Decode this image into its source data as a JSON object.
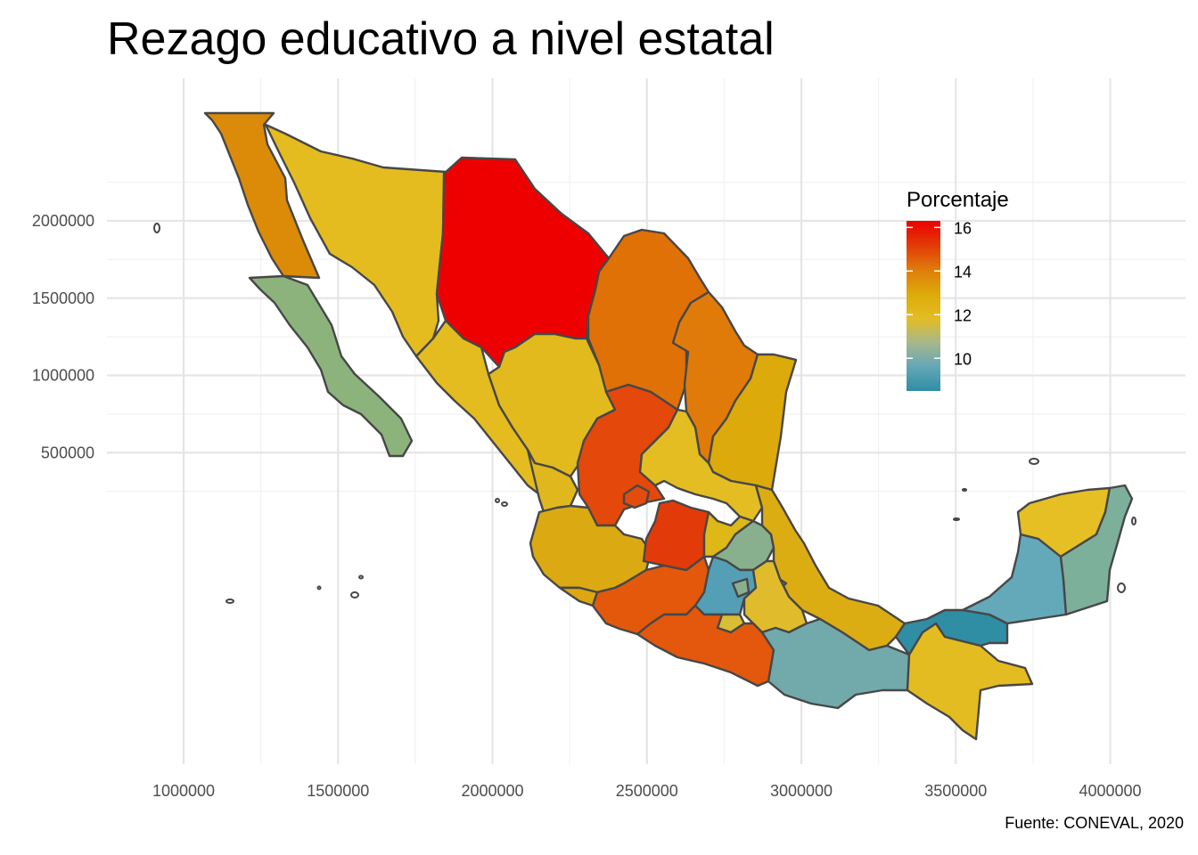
{
  "title": "Rezago educativo a nivel estatal",
  "caption": "Fuente: CONEVAL, 2020",
  "legend": {
    "title": "Porcentaje",
    "breaks": [
      16,
      14,
      12,
      10
    ],
    "range": [
      8.5,
      16.3
    ],
    "palette": [
      "#2f8da4",
      "#64a7b7",
      "#a7b88a",
      "#e4bd22",
      "#dcaa0a",
      "#e07b09",
      "#e23a08",
      "#ee0000"
    ]
  },
  "axes": {
    "x_ticks": [
      "1000000",
      "1500000",
      "2000000",
      "2500000",
      "3000000",
      "3500000",
      "4000000"
    ],
    "y_ticks": [
      "2000000",
      "1500000",
      "1000000",
      "500000"
    ],
    "grid": true,
    "x_range": [
      850000,
      4250000
    ],
    "y_range": [
      220000,
      2470000
    ]
  },
  "states": [
    {
      "name": "Baja California",
      "value": 14.5,
      "color": "#db8b08"
    },
    {
      "name": "Baja California Sur",
      "value": 11.2,
      "color": "#8db37d"
    },
    {
      "name": "Sonora",
      "value": 13.0,
      "color": "#e4bc1f"
    },
    {
      "name": "Chihuahua",
      "value": 16.3,
      "color": "#ee0000"
    },
    {
      "name": "Coahuila",
      "value": 14.8,
      "color": "#df7106"
    },
    {
      "name": "Nuevo León",
      "value": 14.6,
      "color": "#e07b09"
    },
    {
      "name": "Tamaulipas",
      "value": 13.7,
      "color": "#dcaa0a"
    },
    {
      "name": "Sinaloa",
      "value": 13.0,
      "color": "#e4bc1f"
    },
    {
      "name": "Durango",
      "value": 13.1,
      "color": "#e2ba1e"
    },
    {
      "name": "Zacatecas",
      "value": 15.5,
      "color": "#e4480a"
    },
    {
      "name": "Aguascalientes",
      "value": 15.4,
      "color": "#e34c0c"
    },
    {
      "name": "San Luis Potosí",
      "value": 12.9,
      "color": "#e4bd22"
    },
    {
      "name": "Nayarit",
      "value": 13.2,
      "color": "#e0b81e"
    },
    {
      "name": "Jalisco",
      "value": 13.6,
      "color": "#dba912"
    },
    {
      "name": "Colima",
      "value": 13.6,
      "color": "#dca712"
    },
    {
      "name": "Michoacán",
      "value": 15.2,
      "color": "#e3580b"
    },
    {
      "name": "Guanajuato",
      "value": 15.8,
      "color": "#e23a08"
    },
    {
      "name": "Querétaro",
      "value": 13.2,
      "color": "#ddb817"
    },
    {
      "name": "Hidalgo",
      "value": 11.4,
      "color": "#88b08f"
    },
    {
      "name": "Veracruz",
      "value": 13.5,
      "color": "#dbad12"
    },
    {
      "name": "Estado de México",
      "value": 10.1,
      "color": "#559fb6"
    },
    {
      "name": "Ciudad de México",
      "value": 11.4,
      "color": "#88b08f"
    },
    {
      "name": "Tlaxcala",
      "value": 10.2,
      "color": "#5aa3b9"
    },
    {
      "name": "Morelos",
      "value": 12.6,
      "color": "#d8bd36"
    },
    {
      "name": "Puebla",
      "value": 12.9,
      "color": "#e0bc2c"
    },
    {
      "name": "Guerrero",
      "value": 15.1,
      "color": "#e3580c"
    },
    {
      "name": "Oaxaca",
      "value": 10.7,
      "color": "#72aaab"
    },
    {
      "name": "Chiapas",
      "value": 12.9,
      "color": "#e3bc21"
    },
    {
      "name": "Tabasco",
      "value": 9.1,
      "color": "#2f8da4"
    },
    {
      "name": "Campeche",
      "value": 10.4,
      "color": "#63a9b9"
    },
    {
      "name": "Yucatán",
      "value": 13.0,
      "color": "#e5bf24"
    },
    {
      "name": "Quintana Roo",
      "value": 11.2,
      "color": "#7db09b"
    }
  ]
}
